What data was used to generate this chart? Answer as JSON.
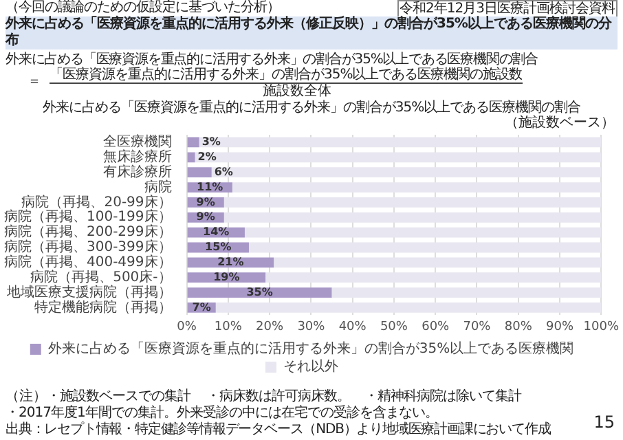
{
  "chart_data": {
    "type": "bar",
    "orientation": "horizontal",
    "stacked": true,
    "title": "外来に占める「医療資源を重点的に活用する外来（修正反映）」の割合が35%以上である医療機関の分布",
    "subtitle": "外来に占める「医療資源を重点的に活用する外来」の割合が35%以上である医療機関の割合",
    "categories": [
      "全医療機関",
      "無床診療所",
      "有床診療所",
      "病院",
      "病院（再掲、20-99床）",
      "病院（再掲、100-199床）",
      "病院（再掲、200-299床）",
      "病院（再掲、300-399床）",
      "病院（再掲、400-499床）",
      "病院（再掲、500床-）",
      "地域医療支援病院（再掲）",
      "特定機能病院（再掲）"
    ],
    "series": [
      {
        "name": "外来に占める「医療資源を重点的に活用する外来」の割合が35%以上である医療機関",
        "color": "#a898c8",
        "values": [
          3,
          2,
          6,
          11,
          9,
          9,
          14,
          15,
          21,
          19,
          35,
          7
        ],
        "value_labels": [
          "3%",
          "2%",
          "6%",
          "11%",
          "9%",
          "9%",
          "14%",
          "15%",
          "21%",
          "19%",
          "35%",
          "7%"
        ]
      },
      {
        "name": "それ以外",
        "color": "#e8e6f0",
        "values": [
          97,
          98,
          94,
          89,
          91,
          91,
          86,
          85,
          79,
          81,
          65,
          93
        ]
      }
    ],
    "xlim": [
      0,
      100
    ],
    "xticks": [
      {
        "value": 0,
        "label": "0%"
      },
      {
        "value": 10,
        "label": "10%"
      },
      {
        "value": 20,
        "label": "20%"
      },
      {
        "value": 30,
        "label": "30%"
      },
      {
        "value": 40,
        "label": "40%"
      },
      {
        "value": 50,
        "label": "50%"
      },
      {
        "value": 60,
        "label": "60%"
      },
      {
        "value": 70,
        "label": "70%"
      },
      {
        "value": 80,
        "label": "80%"
      },
      {
        "value": 90,
        "label": "90%"
      },
      {
        "value": 100,
        "label": "100%"
      }
    ],
    "grid": "x",
    "legend": "bottom",
    "annotations": [
      "令和2年12月3日医療計画検討会資料",
      "（今回の議論のための仮設定に基づいた分析）",
      "外来に占める「医療資源を重点的に活用する外来」の割合が35%以上である医療機関の割合",
      "＝",
      "「医療資源を重点的に活用する外来」の割合が35%以上である医療機関の施設数",
      "施設数全体",
      "（施設数ベース）",
      "（注）",
      "・施設数ベースでの集計",
      "・2017年度1年間での集計。外来受診の中には在宅での受診を含まない。",
      "・病床数は許可病床数。",
      "・精神科病院は除いて集計",
      "出典：レセプト情報・特定健診等情報データベース（NDB）より地域医療計画課において作成",
      "15"
    ]
  }
}
